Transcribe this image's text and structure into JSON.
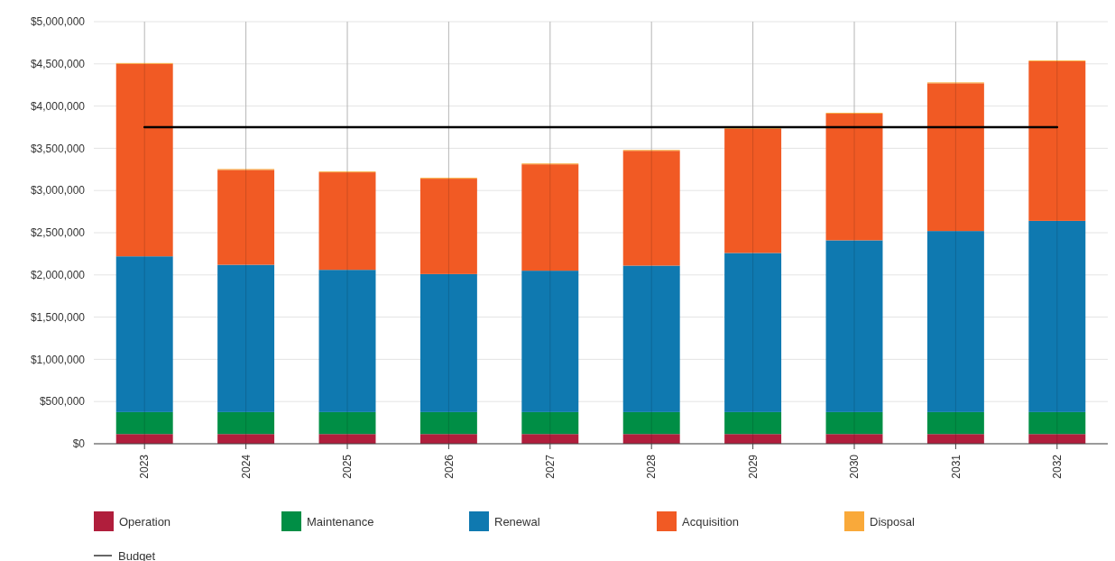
{
  "chart_data": {
    "type": "bar",
    "stacked": true,
    "categories": [
      "2023",
      "2024",
      "2025",
      "2026",
      "2027",
      "2028",
      "2029",
      "2030",
      "2031",
      "2032"
    ],
    "series": [
      {
        "name": "Operation",
        "color": "#b01e3c",
        "values": [
          115000,
          115000,
          115000,
          115000,
          115000,
          115000,
          115000,
          115000,
          115000,
          115000
        ]
      },
      {
        "name": "Maintenance",
        "color": "#008e45",
        "values": [
          260000,
          260000,
          260000,
          260000,
          260000,
          260000,
          260000,
          260000,
          260000,
          260000
        ]
      },
      {
        "name": "Renewal",
        "color": "#0f79b0",
        "values": [
          1845000,
          1745000,
          1685000,
          1635000,
          1675000,
          1735000,
          1885000,
          2035000,
          2145000,
          2265000
        ]
      },
      {
        "name": "Acquisition",
        "color": "#f15a24",
        "values": [
          2280000,
          1124000,
          1155000,
          1130000,
          1260000,
          1360000,
          1470000,
          1500000,
          1750000,
          1890000
        ]
      },
      {
        "name": "Disposal",
        "color": "#f9a93a",
        "values": [
          10000,
          10000,
          10000,
          10000,
          10000,
          10000,
          10000,
          10000,
          10000,
          10000
        ]
      },
      {
        "name": "Budget",
        "type": "line",
        "color": "#000000",
        "values": [
          3750000,
          3750000,
          3750000,
          3750000,
          3750000,
          3750000,
          3750000,
          3750000,
          3750000,
          3750000
        ]
      }
    ],
    "ylim": [
      0,
      5000000
    ],
    "yticks": [
      {
        "value": 0,
        "label": "$0"
      },
      {
        "value": 500000,
        "label": "$500,000"
      },
      {
        "value": 1000000,
        "label": "$1,000,000"
      },
      {
        "value": 1500000,
        "label": "$1,500,000"
      },
      {
        "value": 2000000,
        "label": "$2,000,000"
      },
      {
        "value": 2500000,
        "label": "$2,500,000"
      },
      {
        "value": 3000000,
        "label": "$3,000,000"
      },
      {
        "value": 3500000,
        "label": "$3,500,000"
      },
      {
        "value": 4000000,
        "label": "$4,000,000"
      },
      {
        "value": 4500000,
        "label": "$4,500,000"
      },
      {
        "value": 5000000,
        "label": "$5,000,000"
      }
    ],
    "grid": true,
    "legend": "bottom",
    "marker": "none",
    "line_style": "solid"
  }
}
